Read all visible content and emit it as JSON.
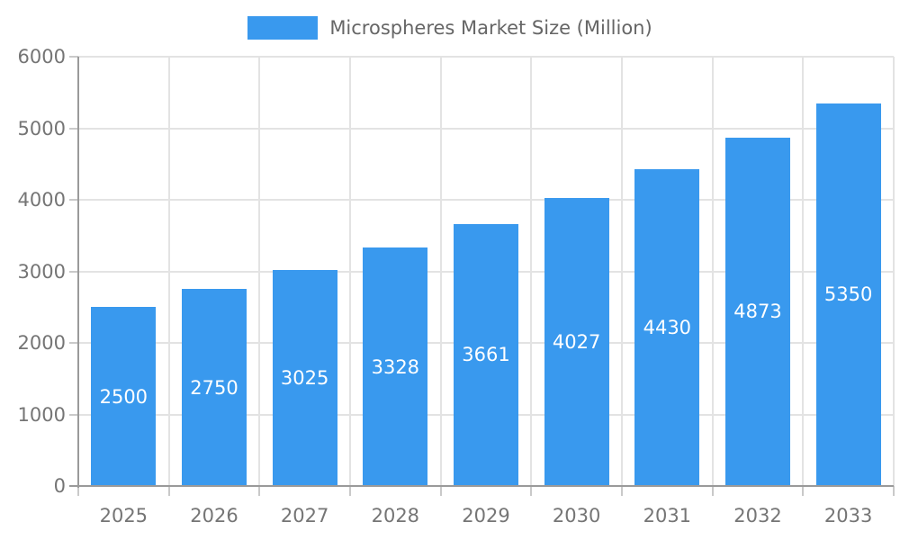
{
  "legend": {
    "label": "Microspheres Market Size (Million)"
  },
  "chart_data": {
    "type": "bar",
    "title": "Microspheres Market Size (Million)",
    "categories": [
      "2025",
      "2026",
      "2027",
      "2028",
      "2029",
      "2030",
      "2031",
      "2032",
      "2033"
    ],
    "values": [
      2500,
      2750,
      3025,
      3328,
      3661,
      4027,
      4430,
      4873,
      5350
    ],
    "xlabel": "",
    "ylabel": "",
    "ylim": [
      0,
      6000
    ],
    "yticks": [
      0,
      1000,
      2000,
      3000,
      4000,
      5000,
      6000
    ],
    "grid": true,
    "legend_position": "top",
    "bar_color": "#3999EE",
    "bar_label_color": "#ffffff",
    "axis_label_color": "#757575",
    "gridline_color": "#e3e3e3",
    "axis_line_color": "#9a9a9a"
  }
}
